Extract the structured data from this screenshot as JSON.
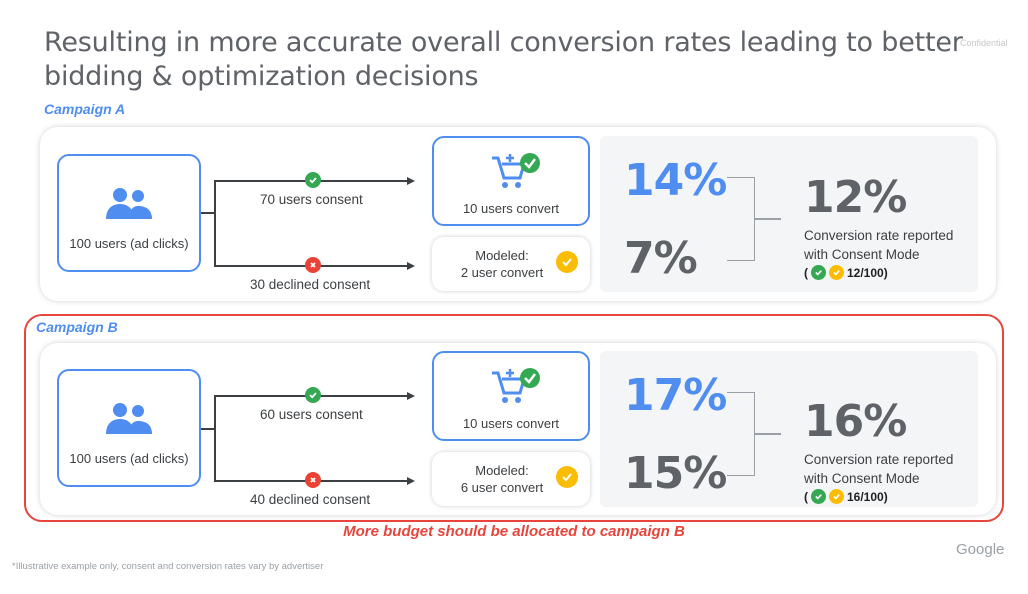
{
  "title_line1": "Resulting in more accurate overall conversion rates leading to better",
  "title_line2": "bidding & optimization decisions",
  "confidential": "Confidential",
  "campaign_a": {
    "label": "Campaign A",
    "users": "100 users (ad clicks)",
    "consent_label": "70 users consent",
    "declined_label": "30 declined consent",
    "convert_label": "10 users convert",
    "modeled_label_line1": "Modeled:",
    "modeled_label_line2": "2 user convert",
    "pct_consent": "14%",
    "pct_modeled": "7%",
    "result_pct": "12%",
    "result_text_line1": "Conversion rate reported",
    "result_text_line2": "with Consent Mode",
    "result_open": "(",
    "result_fraction": "12/100)"
  },
  "campaign_b": {
    "label": "Campaign B",
    "users": "100 users (ad clicks)",
    "consent_label": "60 users consent",
    "declined_label": "40 declined consent",
    "convert_label": "10 users convert",
    "modeled_label_line1": "Modeled:",
    "modeled_label_line2": "6 user convert",
    "pct_consent": "17%",
    "pct_modeled": "15%",
    "result_pct": "16%",
    "result_text_line1": "Conversion rate reported",
    "result_text_line2": "with Consent Mode",
    "result_open": "(",
    "result_fraction": "16/100)"
  },
  "budget_note": "More budget should be allocated to campaign B",
  "footnote": "*Illustrative example only, consent and conversion rates vary by advertiser",
  "brand": "Google",
  "colors": {
    "blue": "#4f8ef0",
    "red": "#e8453c",
    "green": "#34a853",
    "yellow": "#fbbc04",
    "gray_text": "#5f6368"
  },
  "icons": [
    "users-icon",
    "cart-icon",
    "check-icon",
    "cross-icon"
  ]
}
